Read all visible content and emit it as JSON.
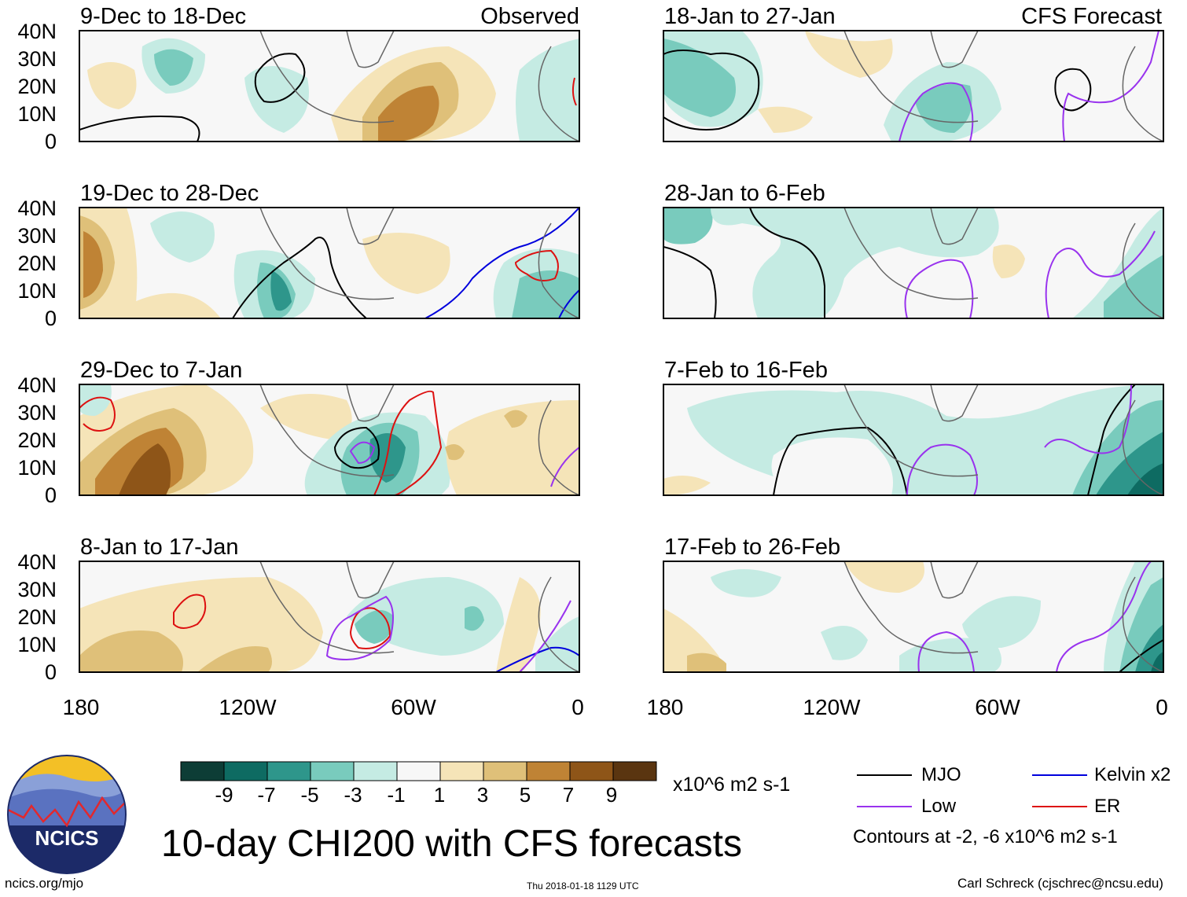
{
  "left_column_label": "Observed",
  "right_column_label": "CFS Forecast",
  "panels_left": [
    {
      "title": "9-Dec to 18-Dec"
    },
    {
      "title": "19-Dec to 28-Dec"
    },
    {
      "title": "29-Dec to 7-Jan"
    },
    {
      "title": "8-Jan to 17-Jan"
    }
  ],
  "panels_right": [
    {
      "title": "18-Jan to 27-Jan"
    },
    {
      "title": "28-Jan to 6-Feb"
    },
    {
      "title": "7-Feb to 16-Feb"
    },
    {
      "title": "17-Feb to 26-Feb"
    }
  ],
  "y_ticks": [
    "40N",
    "30N",
    "20N",
    "10N",
    "0"
  ],
  "x_ticks": [
    "180",
    "120W",
    "60W",
    "0"
  ],
  "colorbar": {
    "colors": [
      "#0d3d36",
      "#0e6b62",
      "#2e968b",
      "#79cbbd",
      "#c5ebe3",
      "#f7f7f7",
      "#f5e4b8",
      "#dfc079",
      "#bf8335",
      "#8e5518",
      "#5a3510"
    ],
    "labels": [
      "-9",
      "-7",
      "-5",
      "-3",
      "-1",
      "1",
      "3",
      "5",
      "7",
      "9"
    ],
    "units": "x10^6 m2 s-1"
  },
  "legend": {
    "items": [
      {
        "label": "MJO",
        "color": "#000000"
      },
      {
        "label": "Kelvin x2",
        "color": "#0000dd"
      },
      {
        "label": "Low",
        "color": "#9933ee"
      },
      {
        "label": "ER",
        "color": "#dd1111"
      }
    ],
    "contours_note": "Contours at -2, -6 x10^6 m2 s-1"
  },
  "main_title": "10-day CHI200 with CFS forecasts",
  "logo_text": "NCICS",
  "footer": {
    "url": "ncics.org/mjo",
    "timestamp": "Thu 2018-01-18 1129 UTC",
    "credit": "Carl Schreck (cjschrec@ncsu.edu)"
  }
}
